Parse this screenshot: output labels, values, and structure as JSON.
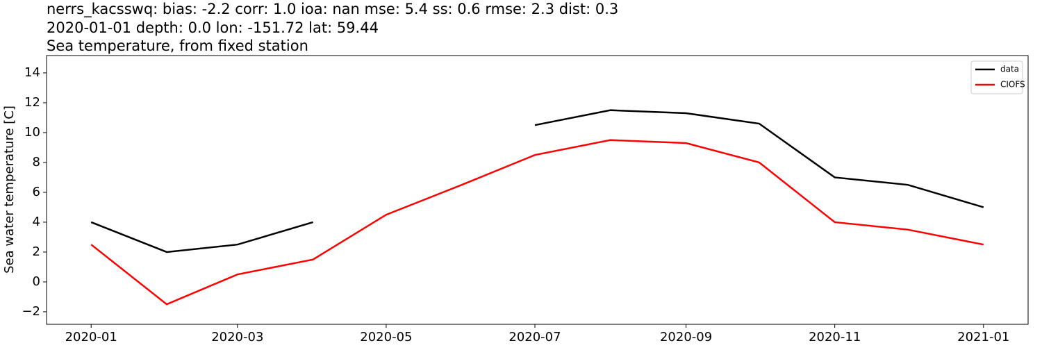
{
  "chart_data": {
    "type": "line",
    "title": "nerrs_kacsswq: bias: -2.2  corr: 1.0  ioa: nan  mse: 5.4  ss: 0.6  rmse: 2.3  dist: 0.3",
    "subtitle": "2020-01-01 depth: 0.0 lon: -151.72 lat: 59.44",
    "subtitle2": "Sea temperature, from fixed station",
    "y_label": "Sea water temperature [C]",
    "x": [
      "2020-01",
      "2020-02",
      "2020-03",
      "2020-04",
      "2020-05",
      "2020-06",
      "2020-07",
      "2020-08",
      "2020-09",
      "2020-10",
      "2020-11",
      "2020-12",
      "2021-01"
    ],
    "series": [
      {
        "name": "data",
        "color": "#000000",
        "values": [
          4.0,
          2.0,
          2.5,
          4.0,
          null,
          null,
          10.5,
          11.5,
          11.3,
          10.6,
          7.0,
          6.5,
          5.0
        ]
      },
      {
        "name": "CIOFS",
        "color": "#ff0000",
        "values": [
          2.5,
          -1.5,
          0.5,
          1.5,
          4.5,
          6.5,
          8.5,
          9.5,
          9.3,
          8.0,
          4.0,
          3.5,
          2.5
        ]
      }
    ],
    "xticks": [
      "2020-01",
      "2020-03",
      "2020-05",
      "2020-07",
      "2020-09",
      "2020-11",
      "2021-01"
    ],
    "ylim": [
      -2.84,
      15.16
    ],
    "yticks": [
      {
        "value": -2,
        "label": "−2"
      },
      0,
      2,
      4,
      6,
      8,
      10,
      12,
      14
    ],
    "legend": "upper right"
  }
}
